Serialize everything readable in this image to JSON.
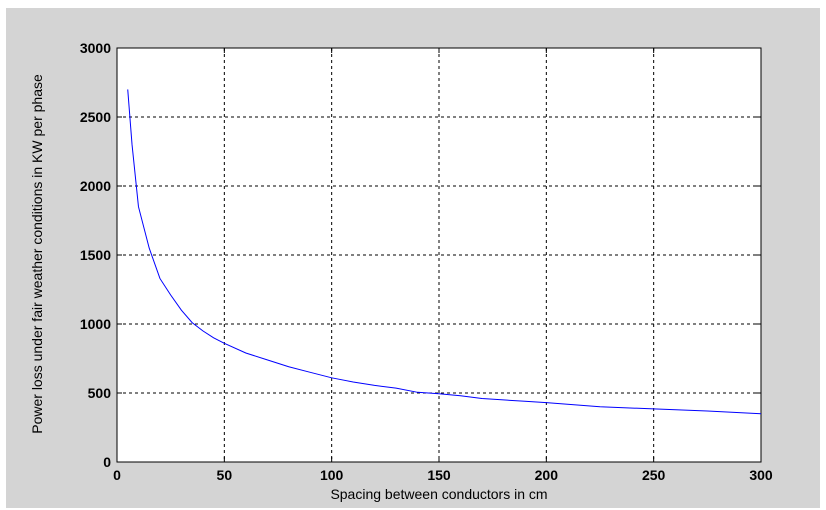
{
  "chart_data": {
    "type": "line",
    "title": "",
    "xlabel": "Spacing between conductors in cm",
    "ylabel": "Power loss under fair weather conditions in KW per phase",
    "xlim": [
      0,
      300
    ],
    "ylim": [
      0,
      3000
    ],
    "xticks": [
      0,
      50,
      100,
      150,
      200,
      250,
      300
    ],
    "yticks": [
      0,
      500,
      1000,
      1500,
      2000,
      2500,
      3000
    ],
    "grid": true,
    "grid_style": "dashed",
    "colors": {
      "figure_background": "#d4d4d4",
      "plot_background": "#ffffff",
      "line": "#0000ff",
      "grid": "#000000"
    },
    "series": [
      {
        "values_xy": [
          [
            5,
            2700
          ],
          [
            7,
            2300
          ],
          [
            10,
            1850
          ],
          [
            15,
            1550
          ],
          [
            20,
            1330
          ],
          [
            25,
            1210
          ],
          [
            30,
            1100
          ],
          [
            35,
            1010
          ],
          [
            40,
            950
          ],
          [
            45,
            900
          ],
          [
            50,
            860
          ],
          [
            60,
            790
          ],
          [
            70,
            740
          ],
          [
            80,
            690
          ],
          [
            90,
            650
          ],
          [
            100,
            610
          ],
          [
            110,
            580
          ],
          [
            120,
            555
          ],
          [
            130,
            535
          ],
          [
            140,
            505
          ],
          [
            150,
            495
          ],
          [
            160,
            480
          ],
          [
            170,
            460
          ],
          [
            180,
            450
          ],
          [
            190,
            440
          ],
          [
            200,
            430
          ],
          [
            225,
            400
          ],
          [
            250,
            385
          ],
          [
            275,
            370
          ],
          [
            300,
            350
          ]
        ]
      }
    ]
  }
}
